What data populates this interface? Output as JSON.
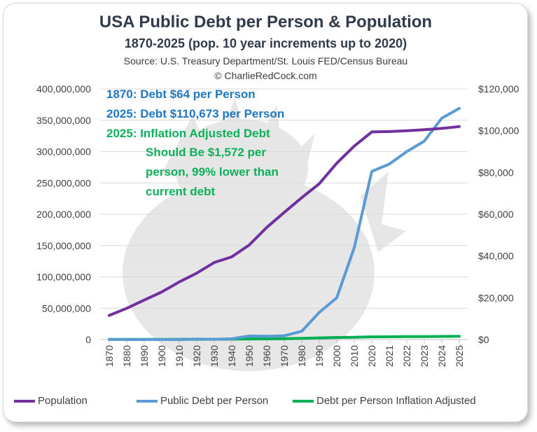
{
  "header": {
    "title": "USA Public Debt per Person & Population",
    "subtitle": "1870-2025 (pop. 10 year increments up to 2020)",
    "source": "Source: U.S. Treasury Department/St. Louis FED/Census Bureau",
    "copyright": "© CharlieRedCock.com"
  },
  "annotations": {
    "line1": "1870: Debt $64 per Person",
    "line2": "2025: Debt $110,673 per Person",
    "line3": "2025: Inflation Adjusted Debt",
    "line4": "Should Be $1,572 per",
    "line5": "person, 99% lower than",
    "line6": "current debt"
  },
  "colors": {
    "population": "#7030a0",
    "debt": "#5b9bd5",
    "inflation": "#00b050",
    "annotation_blue": "#1f77c4",
    "annotation_green": "#0bb15a"
  },
  "chart_data": {
    "type": "line",
    "categories": [
      "1870",
      "1880",
      "1890",
      "1900",
      "1910",
      "1920",
      "1930",
      "1940",
      "1950",
      "1960",
      "1970",
      "1980",
      "1990",
      "2000",
      "2010",
      "2020",
      "2021",
      "2022",
      "2023",
      "2024",
      "2025"
    ],
    "y_left": {
      "ylim": [
        0,
        400000000
      ],
      "ticks": [
        0,
        50000000,
        100000000,
        150000000,
        200000000,
        250000000,
        300000000,
        350000000,
        400000000
      ],
      "tick_labels": [
        "0",
        "50,000,000",
        "100,000,000",
        "150,000,000",
        "200,000,000",
        "250,000,000",
        "300,000,000",
        "350,000,000",
        "400,000,000"
      ]
    },
    "y_right": {
      "ylim": [
        0,
        120000
      ],
      "ticks": [
        0,
        20000,
        40000,
        60000,
        80000,
        100000,
        120000
      ],
      "tick_labels": [
        "$0",
        "$20,000",
        "$40,000",
        "$60,000",
        "$80,000",
        "$100,000",
        "$120,000"
      ]
    },
    "grid": true,
    "legend_position": "bottom",
    "series": [
      {
        "name": "Population",
        "axis": "left",
        "values": [
          38500000,
          50000000,
          63000000,
          76000000,
          92000000,
          106000000,
          123000000,
          132000000,
          151000000,
          179000000,
          203000000,
          226500000,
          248700000,
          281400000,
          308700000,
          331400000,
          332000000,
          333300000,
          334900000,
          337000000,
          340000000
        ]
      },
      {
        "name": "Public Debt per Person",
        "axis": "right",
        "values": [
          64,
          40,
          20,
          20,
          15,
          230,
          130,
          380,
          1700,
          1600,
          1800,
          4000,
          13000,
          20000,
          44000,
          80500,
          84000,
          90000,
          95000,
          106000,
          110673
        ]
      },
      {
        "name": "Debt per Person Inflation Adjusted",
        "axis": "right",
        "values": [
          64,
          80,
          100,
          110,
          120,
          150,
          180,
          200,
          300,
          350,
          400,
          600,
          800,
          1000,
          1100,
          1300,
          1350,
          1400,
          1450,
          1500,
          1572
        ]
      }
    ]
  }
}
